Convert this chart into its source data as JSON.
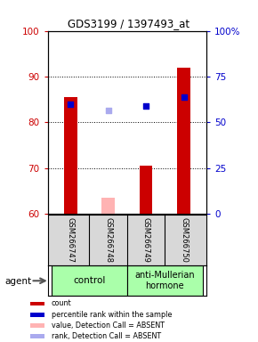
{
  "title": "GDS3199 / 1397493_at",
  "samples": [
    "GSM266747",
    "GSM266748",
    "GSM266749",
    "GSM266750"
  ],
  "bar_values": [
    85.5,
    63.5,
    70.5,
    92.0
  ],
  "bar_absent": [
    false,
    true,
    false,
    false
  ],
  "rank_values": [
    84.0,
    82.5,
    83.5,
    85.5
  ],
  "rank_absent": [
    false,
    true,
    false,
    false
  ],
  "ylim_left": [
    60,
    100
  ],
  "ylim_right": [
    0,
    100
  ],
  "yticks_left": [
    60,
    70,
    80,
    90,
    100
  ],
  "yticks_right": [
    0,
    25,
    50,
    75,
    100
  ],
  "ytick_labels_right": [
    "0",
    "25",
    "50",
    "75",
    "100%"
  ],
  "bar_color": "#cc0000",
  "bar_absent_color": "#ffb3b3",
  "rank_color": "#0000cc",
  "rank_absent_color": "#aaaaee",
  "bar_width": 0.35,
  "left_label_color": "#cc0000",
  "right_label_color": "#0000cc",
  "group_label_left": "control",
  "group_label_right": "anti-Mullerian\nhormone",
  "agent_label": "agent",
  "legend_items": [
    [
      "#cc0000",
      "count"
    ],
    [
      "#0000cc",
      "percentile rank within the sample"
    ],
    [
      "#ffb3b3",
      "value, Detection Call = ABSENT"
    ],
    [
      "#aaaaee",
      "rank, Detection Call = ABSENT"
    ]
  ]
}
